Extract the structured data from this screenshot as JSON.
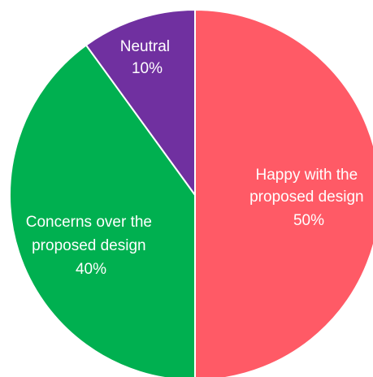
{
  "chart_data": {
    "type": "pie",
    "slices": [
      {
        "label_lines": [
          "Happy with the",
          "proposed design"
        ],
        "percent_label": "50%",
        "value": 50,
        "color": "#FF5A66"
      },
      {
        "label_lines": [
          "Concerns over the",
          "proposed design"
        ],
        "percent_label": "40%",
        "value": 40,
        "color": "#00B050"
      },
      {
        "label_lines": [
          "Neutral"
        ],
        "percent_label": "10%",
        "value": 10,
        "color": "#7030A0"
      }
    ]
  }
}
